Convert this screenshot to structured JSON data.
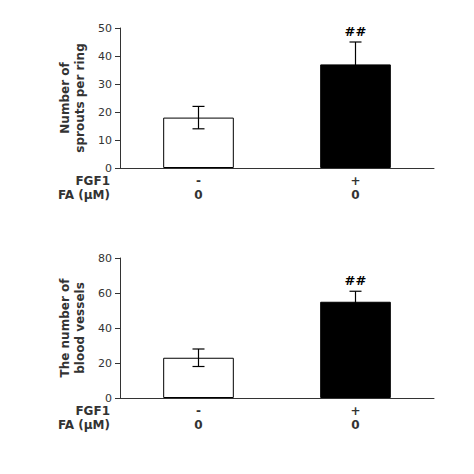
{
  "chart_data": [
    {
      "type": "bar",
      "ylabel": "Number of\nsprouts per ring",
      "categories": [
        "-\n0",
        "+\n0"
      ],
      "row_labels": [
        "FGF1",
        "FA (μM)"
      ],
      "values": [
        18,
        37
      ],
      "errors": [
        4,
        8
      ],
      "colors": [
        "white",
        "black"
      ],
      "ylim": [
        0,
        50
      ],
      "yticks": [
        0,
        10,
        20,
        30,
        40,
        50
      ],
      "grid": false,
      "annotations": [
        {
          "text": "##",
          "index": 1
        }
      ]
    },
    {
      "type": "bar",
      "ylabel": "The number of\nblood vessels",
      "categories": [
        "-\n0",
        "+\n0"
      ],
      "row_labels": [
        "FGF1",
        "FA (μM)"
      ],
      "values": [
        23,
        55
      ],
      "errors": [
        5,
        6
      ],
      "colors": [
        "white",
        "black"
      ],
      "ylim": [
        0,
        80
      ],
      "yticks": [
        0,
        20,
        40,
        60,
        80
      ],
      "grid": false,
      "annotations": [
        {
          "text": "##",
          "index": 1
        }
      ]
    }
  ]
}
